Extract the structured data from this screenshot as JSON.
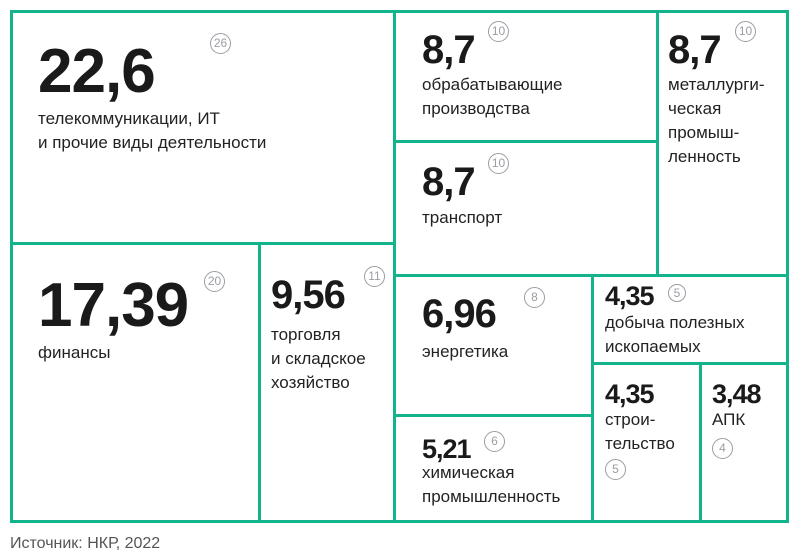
{
  "chart_data": {
    "type": "treemap",
    "items": [
      {
        "value": "22,6",
        "label": "телекоммуникации, ИТ и прочие виды деятельности",
        "label_lines": [
          "телекоммуникации, ИТ",
          "и прочие виды деятельности"
        ],
        "rank": "26"
      },
      {
        "value": "17,39",
        "label": "финансы",
        "label_lines": [
          "финансы"
        ],
        "rank": "20"
      },
      {
        "value": "9,56",
        "label": "торговля и складское хозяйство",
        "label_lines": [
          "торговля",
          "и складское",
          "хозяйство"
        ],
        "rank": "11"
      },
      {
        "value": "8,7",
        "label": "обрабатывающие производства",
        "label_lines": [
          "обрабатывающие",
          "производства"
        ],
        "rank": "10"
      },
      {
        "value": "8,7",
        "label": "транспорт",
        "label_lines": [
          "транспорт"
        ],
        "rank": "10"
      },
      {
        "value": "8,7",
        "label": "металлургическая промышленность",
        "label_lines": [
          "металлурги-",
          "ческая",
          "промыш-",
          "ленность"
        ],
        "rank": "10"
      },
      {
        "value": "6,96",
        "label": "энергетика",
        "label_lines": [
          "энергетика"
        ],
        "rank": "8"
      },
      {
        "value": "5,21",
        "label": "химическая промышленность",
        "label_lines": [
          "химическая",
          "промышленность"
        ],
        "rank": "6"
      },
      {
        "value": "4,35",
        "label": "добыча полезных ископаемых",
        "label_lines": [
          "добыча полезных",
          "ископаемых"
        ],
        "rank": "5"
      },
      {
        "value": "4,35",
        "label": "строительство",
        "label_lines": [
          "строи-",
          "тельство"
        ],
        "rank": "5"
      },
      {
        "value": "3,48",
        "label": "АПК",
        "label_lines": [
          "АПК"
        ],
        "rank": "4"
      }
    ],
    "colors": {
      "border": "#13b38b",
      "text": "#1a1a1a",
      "rank": "#9a9ea3"
    }
  },
  "source": "Источник: НКР, 2022"
}
